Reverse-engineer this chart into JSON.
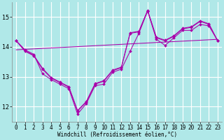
{
  "xlabel": "Windchill (Refroidissement éolien,°C)",
  "background_color": "#b0e8e8",
  "grid_color": "#ffffff",
  "line_color": "#aa00aa",
  "x": [
    0,
    1,
    2,
    3,
    4,
    5,
    6,
    7,
    8,
    9,
    10,
    11,
    12,
    13,
    14,
    15,
    16,
    17,
    18,
    19,
    20,
    21,
    22,
    23
  ],
  "line1": [
    14.2,
    13.9,
    13.75,
    13.1,
    12.9,
    12.75,
    12.6,
    11.75,
    12.1,
    12.7,
    12.75,
    13.15,
    13.25,
    13.85,
    14.45,
    15.2,
    14.25,
    14.05,
    14.3,
    14.55,
    14.55,
    14.75,
    14.7,
    14.2
  ],
  "line2_x": [
    0,
    1,
    2,
    3,
    4,
    5,
    6,
    7,
    8,
    9,
    10,
    11,
    12,
    13,
    14,
    15,
    16,
    17,
    18,
    19,
    20,
    21,
    22,
    23
  ],
  "line2": [
    14.2,
    13.85,
    13.7,
    13.25,
    12.95,
    12.8,
    12.65,
    11.85,
    12.15,
    12.75,
    12.85,
    13.2,
    13.3,
    14.45,
    14.5,
    15.2,
    14.3,
    14.2,
    14.35,
    14.6,
    14.65,
    14.85,
    14.75,
    14.2
  ],
  "line3_x": [
    0,
    1,
    2,
    3,
    4,
    5,
    6,
    7,
    8,
    9,
    10,
    11,
    12,
    13,
    14,
    15,
    16,
    17,
    18,
    19,
    20,
    21,
    22,
    23
  ],
  "line3": [
    14.2,
    13.87,
    13.72,
    13.28,
    12.97,
    12.82,
    12.67,
    11.87,
    12.17,
    12.77,
    12.87,
    13.22,
    13.32,
    14.47,
    14.52,
    15.22,
    14.32,
    14.22,
    14.37,
    14.62,
    14.67,
    14.87,
    14.77,
    14.2
  ],
  "trend_x": [
    0,
    23
  ],
  "trend_y": [
    13.9,
    14.25
  ],
  "ylim": [
    11.5,
    15.5
  ],
  "yticks": [
    12,
    13,
    14,
    15
  ],
  "xticks": [
    0,
    1,
    2,
    3,
    4,
    5,
    6,
    7,
    8,
    9,
    10,
    11,
    12,
    13,
    14,
    15,
    16,
    17,
    18,
    19,
    20,
    21,
    22,
    23
  ],
  "xlabel_fontsize": 5.5,
  "tick_fontsize": 5.5
}
